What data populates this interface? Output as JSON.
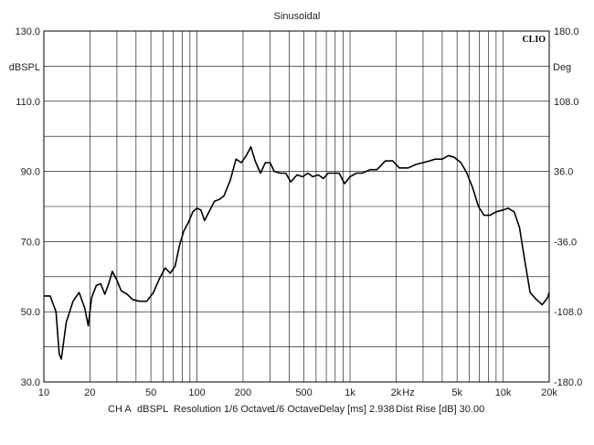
{
  "chart_data": {
    "type": "line",
    "title": "Sinusoidal",
    "logo": "CLIO",
    "xscale": "log",
    "xlim": [
      10,
      20000
    ],
    "xticks": [
      {
        "v": 10,
        "label": "10"
      },
      {
        "v": 20,
        "label": "20"
      },
      {
        "v": 50,
        "label": "50"
      },
      {
        "v": 100,
        "label": "100"
      },
      {
        "v": 200,
        "label": "200"
      },
      {
        "v": 500,
        "label": "500"
      },
      {
        "v": 1000,
        "label": "1k"
      },
      {
        "v": 2000,
        "label": "2k"
      },
      {
        "v": 5000,
        "label": "5k"
      },
      {
        "v": 10000,
        "label": "10k"
      },
      {
        "v": 20000,
        "label": "20k"
      }
    ],
    "x_unit": "Hz",
    "ylim": [
      30,
      130
    ],
    "yticks": [
      130,
      110,
      90,
      70,
      50,
      30
    ],
    "ytick_labels": [
      "130.0",
      "110.0",
      "90.0",
      "70.0",
      "50.0",
      "30.0"
    ],
    "ylabel": "dBSPL",
    "y2lim": [
      -180,
      180
    ],
    "y2tick_labels": [
      "180.0",
      "108.0",
      "36.0",
      "-36.0",
      "-108.0",
      "-180.0"
    ],
    "y2label": "Deg",
    "grid": true,
    "series": [
      {
        "x": [
          10,
          11,
          12,
          12.6,
          13,
          14,
          15.5,
          17,
          18.5,
          19.5,
          20.5,
          22,
          23.5,
          25,
          26.5,
          28,
          30,
          32,
          35,
          38,
          42,
          47,
          52,
          57,
          62,
          67,
          72,
          77,
          82,
          88,
          94,
          100,
          106,
          112,
          120,
          130,
          140,
          150,
          165,
          180,
          195,
          210,
          225,
          240,
          260,
          280,
          300,
          320,
          350,
          380,
          410,
          450,
          490,
          530,
          570,
          620,
          670,
          720,
          780,
          850,
          920,
          1000,
          1100,
          1200,
          1350,
          1500,
          1700,
          1900,
          2100,
          2400,
          2700,
          3000,
          3300,
          3600,
          4000,
          4400,
          4800,
          5300,
          5800,
          6300,
          6900,
          7500,
          8200,
          9000,
          10000,
          10800,
          11800,
          12800,
          13800,
          15000,
          16500,
          18000,
          19500,
          20000
        ],
        "values": [
          54.5,
          54.5,
          50,
          38,
          36.5,
          47,
          53,
          55.5,
          51,
          46,
          54,
          57.5,
          58,
          55,
          58,
          61.5,
          59,
          56,
          55,
          53.5,
          53,
          53,
          55.5,
          59.5,
          62.5,
          61,
          63,
          69,
          73,
          75.5,
          78.5,
          79.5,
          79,
          76,
          78.5,
          81.5,
          82,
          83,
          87.5,
          93.5,
          92.5,
          94.5,
          97,
          93,
          89.5,
          92.5,
          92.5,
          90,
          89.5,
          89.5,
          87,
          89,
          88.5,
          89.5,
          88.5,
          89,
          88,
          89.5,
          89.5,
          89.5,
          86.5,
          88.5,
          89.5,
          89.5,
          90.5,
          90.5,
          93,
          93,
          91,
          91,
          92,
          92.5,
          93,
          93.5,
          93.5,
          94.5,
          94,
          92.5,
          89.5,
          85.5,
          80,
          77.5,
          77.5,
          78.5,
          79,
          79.5,
          78.5,
          74,
          65,
          55.5,
          53.5,
          52,
          54,
          55.5
        ]
      }
    ]
  },
  "footer": {
    "channel": "CH A",
    "unit": "dBSPL",
    "resolution": "Resolution 1/6 Octave",
    "smoothing": "1/6 Octave",
    "delay": "Delay [ms] 2.938",
    "dist_rise": "Dist Rise [dB] 30.00"
  }
}
